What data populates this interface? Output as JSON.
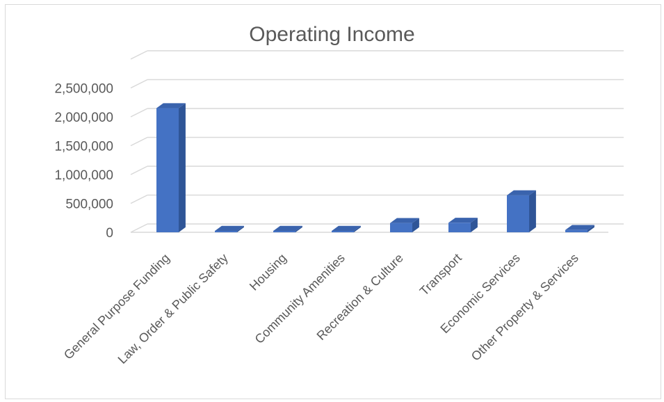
{
  "chart_data": {
    "type": "bar",
    "style": "3d-column",
    "title": "Operating Income",
    "categories": [
      "General Purpose Funding",
      "Law, Order & Public Safety",
      "Housing",
      "Community Amenities",
      "Recreation & Culture",
      "Transport",
      "Economic Services",
      "Other Property & Services"
    ],
    "values": [
      2150000,
      12000,
      5000,
      8000,
      160000,
      165000,
      640000,
      40000
    ],
    "y_ticks": [
      "0",
      "500,000",
      "1,000,000",
      "1,500,000",
      "2,000,000",
      "2,500,000"
    ],
    "ylim": [
      0,
      2500000
    ],
    "grid": true,
    "legend": "none",
    "colors": {
      "bar_front": "#4472c4",
      "bar_side": "#2f5597",
      "bar_top": "#3a63ad",
      "grid": "#d9d9d9",
      "text": "#595959"
    }
  }
}
